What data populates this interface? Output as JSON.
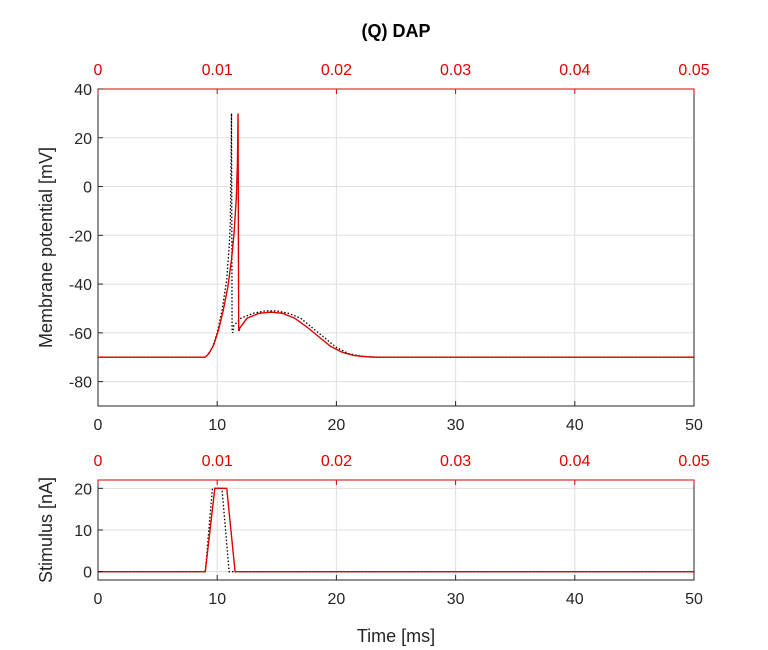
{
  "title": "(Q) DAP",
  "colors": {
    "primary": "#e00000",
    "reference": "#000000",
    "axis": "#262626",
    "grid": "#dfdfdf"
  },
  "chart_data": [
    {
      "id": "membrane",
      "type": "line",
      "xlabel": "",
      "ylabel": "Membrane potential [mV]",
      "xlim": [
        0,
        50
      ],
      "ylim": [
        -90,
        40
      ],
      "xticks": [
        0,
        10,
        20,
        30,
        40,
        50
      ],
      "xtick_labels": [
        "0",
        "10",
        "20",
        "30",
        "40",
        "50"
      ],
      "yticks": [
        -80,
        -60,
        -40,
        -20,
        0,
        20,
        40
      ],
      "ytick_labels": [
        "-80",
        "-60",
        "-40",
        "-20",
        "0",
        "20",
        "40"
      ],
      "top_axis": {
        "lim": [
          0,
          0.05
        ],
        "ticks": [
          "0",
          "0.01",
          "0.02",
          "0.03",
          "0.04",
          "0.05"
        ],
        "color": "#e00000"
      },
      "grid": true,
      "series": [
        {
          "style": "dotted",
          "color": "#000000",
          "x": [
            0,
            9.0,
            9.2,
            9.6,
            10.0,
            10.4,
            10.8,
            11.0,
            11.1,
            11.15,
            11.2,
            11.25,
            11.3,
            11.4,
            12.0,
            13.0,
            14.0,
            15.0,
            16.0,
            17.0,
            18.0,
            19.0,
            20.0,
            21.0,
            22.0,
            23.0,
            24.0,
            50
          ],
          "y": [
            -70,
            -70,
            -69,
            -66,
            -60,
            -51,
            -38,
            -25,
            -15,
            5,
            30,
            -59,
            -60,
            -57,
            -54,
            -52,
            -51,
            -51,
            -52,
            -54,
            -58,
            -62,
            -66,
            -68.5,
            -69.5,
            -70,
            -70,
            -70
          ]
        },
        {
          "style": "solid",
          "color": "#e00000",
          "x": [
            0,
            9.0,
            9.3,
            9.7,
            10.1,
            10.5,
            10.9,
            11.2,
            11.4,
            11.6,
            11.7,
            11.75,
            11.8,
            11.85,
            11.9,
            12.5,
            13.5,
            14.5,
            15.5,
            16.5,
            17.5,
            18.5,
            19.5,
            20.5,
            21.5,
            22.5,
            23.5,
            50
          ],
          "y": [
            -70,
            -70,
            -68.5,
            -65,
            -59,
            -51,
            -41,
            -30,
            -20,
            -5,
            10,
            30,
            -59,
            -59,
            -58,
            -54,
            -52,
            -51.5,
            -52,
            -54,
            -57.5,
            -61.5,
            -65.5,
            -68,
            -69.3,
            -69.8,
            -70,
            -70
          ]
        }
      ]
    },
    {
      "id": "stimulus",
      "type": "line",
      "xlabel": "Time [ms]",
      "ylabel": "Stimulus [nA]",
      "xlim": [
        0,
        50
      ],
      "ylim": [
        -2,
        22
      ],
      "xticks": [
        0,
        10,
        20,
        30,
        40,
        50
      ],
      "xtick_labels": [
        "0",
        "10",
        "20",
        "30",
        "40",
        "50"
      ],
      "yticks": [
        0,
        10,
        20
      ],
      "ytick_labels": [
        "0",
        "10",
        "20"
      ],
      "top_axis": {
        "lim": [
          0,
          0.05
        ],
        "ticks": [
          "0",
          "0.01",
          "0.02",
          "0.03",
          "0.04",
          "0.05"
        ],
        "color": "#e00000"
      },
      "grid": true,
      "series": [
        {
          "style": "dotted",
          "color": "#000000",
          "x": [
            0,
            9.0,
            9.6,
            10.4,
            11.0,
            50
          ],
          "y": [
            0,
            0,
            20,
            20,
            0,
            0
          ]
        },
        {
          "style": "solid",
          "color": "#e00000",
          "x": [
            0,
            9.0,
            9.8,
            10.8,
            11.5,
            50
          ],
          "y": [
            0,
            0,
            20,
            20,
            0,
            0
          ]
        }
      ]
    }
  ]
}
